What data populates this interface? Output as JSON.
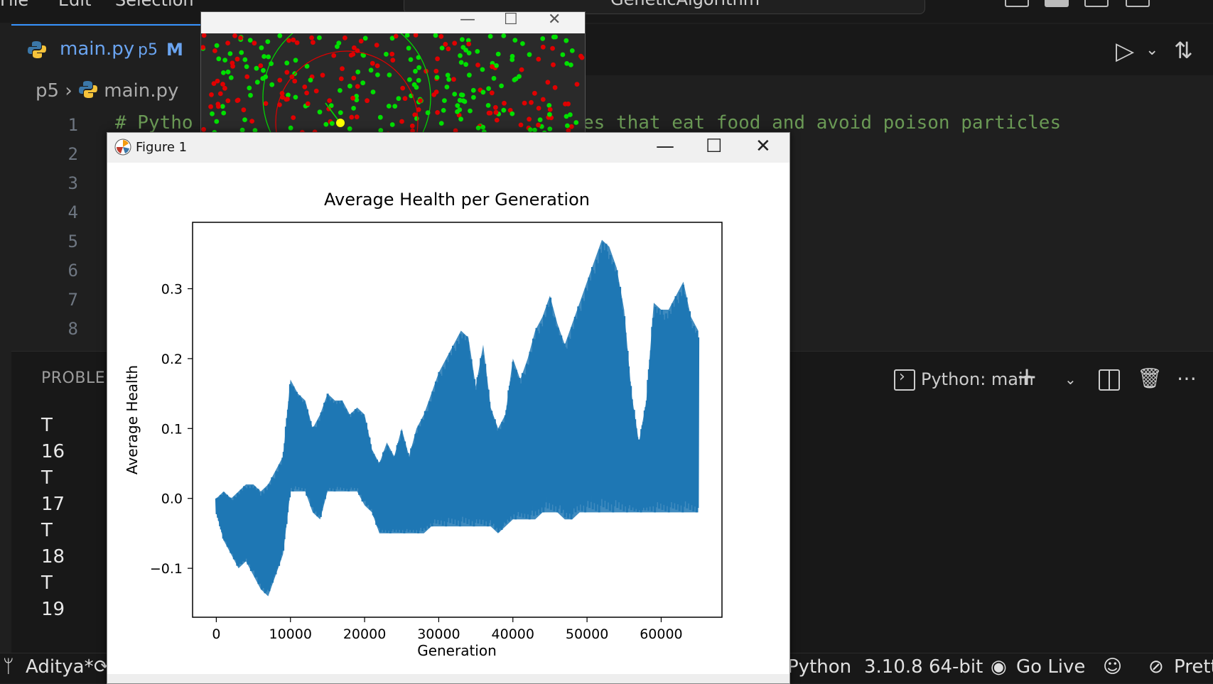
{
  "menu": {
    "items": [
      "File",
      "Edit",
      "Selection"
    ]
  },
  "command_center": {
    "text": "GeneticAlgorithm"
  },
  "tab": {
    "name": "main.py",
    "folder": "p5",
    "modified": "M"
  },
  "breadcrumb": {
    "folder": "p5",
    "file": "main.py"
  },
  "editor": {
    "line_numbers": [
      "1",
      "2",
      "3",
      "4",
      "5",
      "6",
      "7",
      "8"
    ],
    "line1_left": "# Pytho",
    "line1_right": "es that eat food and avoid poison particles"
  },
  "panel": {
    "title": "PROBLEM",
    "terminal_label": "Python: main",
    "lines": [
      "T",
      "16",
      "T",
      "17",
      "T",
      "18",
      "T",
      "19"
    ]
  },
  "status": {
    "branch": "Aditya*",
    "language": "Python",
    "interpreter": "3.10.8 64-bit",
    "golive": "Go Live",
    "prettier": "Prett"
  },
  "figure_window": {
    "title": "Figure 1"
  },
  "sim_colors": {
    "food": "#00e000",
    "poison": "#e00000",
    "agent": "#ffff00",
    "background": "#2a2a2a"
  },
  "chart_data": {
    "type": "line",
    "title": "Average Health per Generation",
    "xlabel": "Generation",
    "ylabel": "Average Health",
    "xlim": [
      -3200,
      68200
    ],
    "ylim": [
      -0.17,
      0.395
    ],
    "xticks": [
      0,
      10000,
      20000,
      30000,
      40000,
      50000,
      60000
    ],
    "yticks": [
      -0.1,
      0.0,
      0.1,
      0.2,
      0.3
    ],
    "ytick_labels": [
      "−0.1",
      "0.0",
      "0.1",
      "0.2",
      "0.3"
    ],
    "color": "#1f77b4",
    "series": [
      {
        "x": [
          0,
          1000,
          2000,
          3000,
          4000,
          5000,
          6000,
          7000,
          8000,
          9000,
          10000,
          11000,
          12000,
          13000,
          14000,
          15000,
          16000,
          17000,
          18000,
          19000,
          20000,
          21000,
          22000,
          23000,
          24000,
          25000,
          26000,
          27000,
          28000,
          29000,
          30000,
          31000,
          32000,
          33000,
          34000,
          35000,
          36000,
          37000,
          38000,
          39000,
          40000,
          41000,
          42000,
          43000,
          44000,
          45000,
          46000,
          47000,
          48000,
          49000,
          50000,
          51000,
          52000,
          53000,
          54000,
          55000,
          56000,
          57000,
          58000,
          59000,
          60000,
          61000,
          62000,
          63000,
          64000,
          65000
        ],
        "upper": [
          0.0,
          0.01,
          0.0,
          0.01,
          0.02,
          0.02,
          0.01,
          0.02,
          0.04,
          0.06,
          0.17,
          0.15,
          0.14,
          0.1,
          0.12,
          0.15,
          0.14,
          0.14,
          0.12,
          0.13,
          0.12,
          0.07,
          0.05,
          0.08,
          0.06,
          0.1,
          0.06,
          0.1,
          0.12,
          0.15,
          0.18,
          0.2,
          0.22,
          0.24,
          0.23,
          0.16,
          0.22,
          0.13,
          0.1,
          0.12,
          0.2,
          0.17,
          0.2,
          0.24,
          0.26,
          0.29,
          0.25,
          0.22,
          0.25,
          0.28,
          0.31,
          0.34,
          0.37,
          0.36,
          0.33,
          0.27,
          0.15,
          0.08,
          0.14,
          0.28,
          0.27,
          0.27,
          0.29,
          0.31,
          0.26,
          0.24
        ],
        "lower": [
          -0.02,
          -0.06,
          -0.08,
          -0.1,
          -0.09,
          -0.11,
          -0.13,
          -0.14,
          -0.11,
          -0.08,
          0.01,
          0.01,
          0.01,
          -0.02,
          -0.03,
          0.01,
          0.01,
          0.01,
          0.01,
          0.01,
          -0.01,
          -0.02,
          -0.05,
          -0.05,
          -0.05,
          -0.05,
          -0.05,
          -0.05,
          -0.05,
          -0.04,
          -0.04,
          -0.04,
          -0.04,
          -0.04,
          -0.04,
          -0.04,
          -0.04,
          -0.04,
          -0.05,
          -0.04,
          -0.03,
          -0.03,
          -0.03,
          -0.03,
          -0.02,
          -0.02,
          -0.02,
          -0.03,
          -0.03,
          -0.02,
          -0.02,
          -0.02,
          -0.02,
          -0.02,
          -0.02,
          -0.02,
          -0.02,
          -0.02,
          -0.02,
          -0.02,
          -0.02,
          -0.02,
          -0.02,
          -0.02,
          -0.02,
          -0.02
        ]
      }
    ]
  }
}
